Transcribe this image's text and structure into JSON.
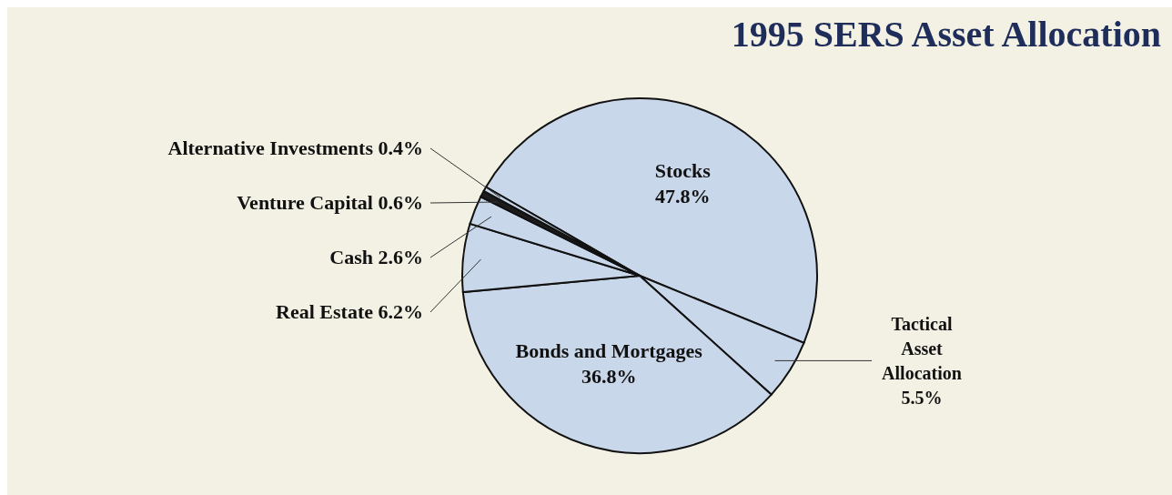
{
  "chart_data": {
    "type": "pie",
    "title": "1995 SERS Asset Allocation",
    "categories": [
      "Stocks",
      "Tactical Asset Allocation",
      "Bonds and Mortgages",
      "Real Estate",
      "Cash",
      "Venture Capital",
      "Alternative Investments"
    ],
    "values": [
      47.8,
      5.5,
      36.8,
      6.2,
      2.6,
      0.6,
      0.4
    ],
    "value_labels": [
      "47.8%",
      "5.5%",
      "36.8%",
      "6.2%",
      "2.6%",
      "0.6%",
      "0.4%"
    ],
    "colors": [
      "#c9d7ea",
      "#c9d7ea",
      "#c9d7ea",
      "#c9d7ea",
      "#c9d7ea",
      "#1c1c1c",
      "#c9d7ea"
    ],
    "legend": false
  }
}
